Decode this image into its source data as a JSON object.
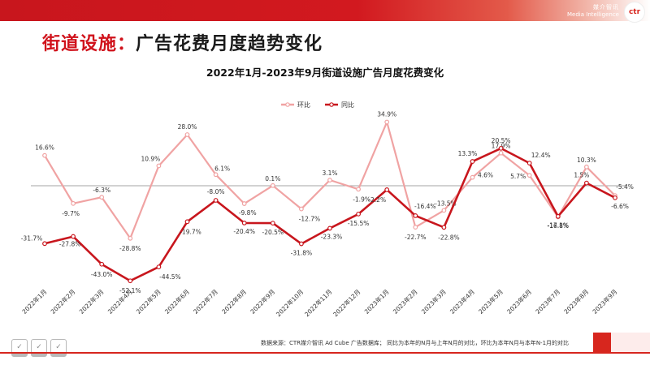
{
  "header": {
    "brand_cn": "媒介智讯",
    "brand_en": "Media Intelligence",
    "logo_text": "ctr"
  },
  "page_title": {
    "highlight": "街道设施：",
    "rest": "广告花费月度趋势变化"
  },
  "colors": {
    "brand_red": "#d0121b",
    "hb_line": "#f0a3a3",
    "tb_line": "#c8161d",
    "zero_line": "#a6a6a6"
  },
  "chart_data": {
    "type": "line",
    "title": "2022年1月-2023年9月街道设施广告月度花费变化",
    "categories": [
      "2022年1月",
      "2022年2月",
      "2022年3月",
      "2022年4月",
      "2022年5月",
      "2022年6月",
      "2022年7月",
      "2022年8月",
      "2022年9月",
      "2022年10月",
      "2022年11月",
      "2022年12月",
      "2023年1月",
      "2023年2月",
      "2023年3月",
      "2023年4月",
      "2023年5月",
      "2023年6月",
      "2023年7月",
      "2023年8月",
      "2023年9月"
    ],
    "series": [
      {
        "name": "环比",
        "color": "#f0a3a3",
        "values": [
          16.6,
          -9.7,
          -6.3,
          -28.8,
          10.9,
          28.0,
          6.1,
          -9.8,
          0.1,
          -12.7,
          3.1,
          -1.9,
          34.9,
          -22.7,
          -13.5,
          4.6,
          17.9,
          5.7,
          -17.1,
          10.3,
          -5.4
        ],
        "labels": [
          "16.6%",
          "-9.7%",
          "-6.3%",
          "-28.8%",
          "10.9%",
          "28.0%",
          "6.1%",
          "-9.8%",
          "0.1%",
          "-12.7%",
          "3.1%",
          "-1.9%",
          "34.9%",
          "-22.7%",
          "-13.5%",
          "4.6%",
          "17.9%",
          "5.7%",
          "-17.1%",
          "10.3%",
          "-5.4%"
        ]
      },
      {
        "name": "同比",
        "color": "#c8161d",
        "values": [
          -31.7,
          -27.8,
          -43.0,
          -52.1,
          -44.5,
          -19.7,
          -8.0,
          -20.4,
          -20.5,
          -31.8,
          -23.3,
          -15.5,
          -2.2,
          -16.4,
          -22.8,
          13.3,
          20.5,
          12.4,
          -16.8,
          1.5,
          -6.6
        ],
        "labels": [
          "-31.7%",
          "-27.8%",
          "-43.0%",
          "-52.1%",
          "-44.5%",
          "-19.7%",
          "-8.0%",
          "-20.4%",
          "-20.5%",
          "-31.8%",
          "-23.3%",
          "-15.5%",
          "-2.2%",
          "-16.4%",
          "-22.8%",
          "13.3%",
          "20.5%",
          "12.4%",
          "-16.8%",
          "1.5%",
          "-6.6%"
        ]
      }
    ],
    "legend_position": "top-center",
    "grid": false,
    "zero_line": true
  },
  "footer": {
    "source_note": "数据来源：CTR媒介智讯 Ad Cube 广告数据库； 同比为本年的N月与上年N月的对比，环比为本年N月与本年N-1月的对比"
  }
}
